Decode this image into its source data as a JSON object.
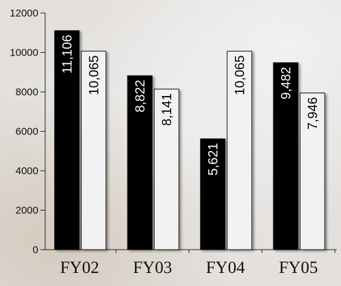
{
  "chart_data": {
    "type": "bar",
    "categories": [
      "FY02",
      "FY03",
      "FY04",
      "FY05"
    ],
    "series": [
      {
        "color": "#000000",
        "label_color": "#ffffff",
        "values": [
          11106,
          8822,
          5621,
          9482
        ],
        "labels": [
          "11,106",
          "8,822",
          "5,621",
          "9,482"
        ]
      },
      {
        "color": "#f2f2f2",
        "label_color": "#000000",
        "values": [
          10065,
          8141,
          10065,
          7946
        ],
        "labels": [
          "10,065",
          "8,141",
          "10,065",
          "7,946"
        ]
      }
    ],
    "ylim": [
      0,
      12000
    ],
    "yticks": [
      "0",
      "2000",
      "4000",
      "6000",
      "8000",
      "10000",
      "12000"
    ],
    "ytick_values": [
      0,
      2000,
      4000,
      6000,
      8000,
      10000,
      12000
    ],
    "grid": false,
    "legend": "none",
    "title": "",
    "xlabel": "",
    "ylabel": ""
  }
}
